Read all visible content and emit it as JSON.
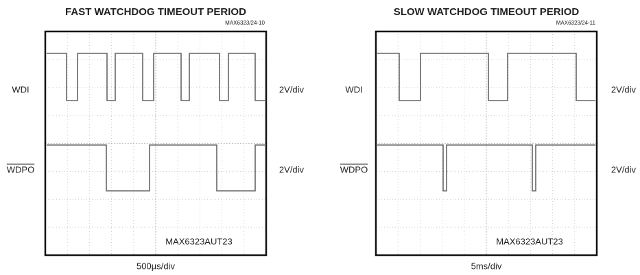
{
  "panels": [
    {
      "title": "FAST WATCHDOG TIMEOUT PERIOD",
      "code": "MAX6323/24-10",
      "signals": [
        {
          "name": "WDI",
          "scale": "2V/div"
        },
        {
          "name": "WDPO",
          "scale": "2V/div"
        }
      ],
      "part": "MAX6323AUT23",
      "time_scale": "500µs/div"
    },
    {
      "title": "SLOW WATCHDOG TIMEOUT PERIOD",
      "code": "MAX6323/24-11",
      "signals": [
        {
          "name": "WDI",
          "scale": "2V/div"
        },
        {
          "name": "WDPO",
          "scale": "2V/div"
        }
      ],
      "part": "MAX6323AUT23",
      "time_scale": "5ms/div"
    }
  ]
}
